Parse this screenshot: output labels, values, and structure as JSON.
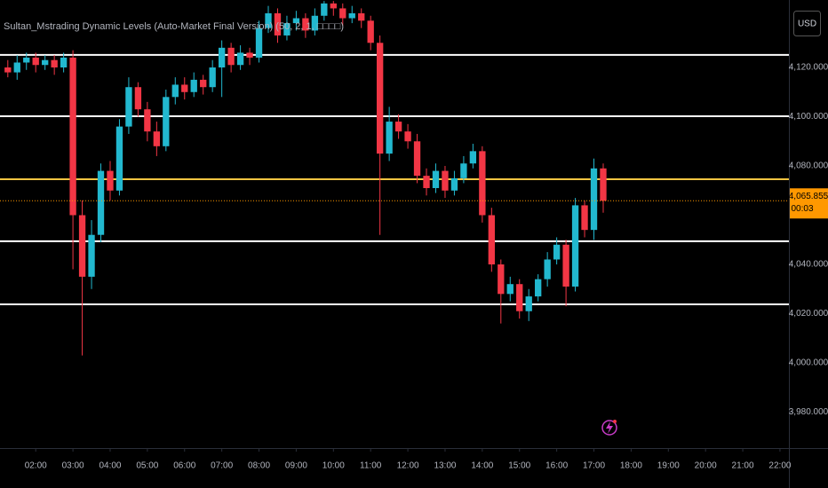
{
  "chart_data": {
    "type": "candlestick",
    "indicator_title": "Sultan_Mstrading Dynamic Levels (Auto-Market Final Version) (50, 2, 1, □□□□)",
    "currency": "USD",
    "up_color": "#22b8cf",
    "down_color": "#f23645",
    "x": [
      1.25,
      1.5,
      1.75,
      2,
      2.25,
      2.5,
      2.75,
      3,
      3.25,
      3.5,
      3.75,
      4,
      4.25,
      4.5,
      4.75,
      5,
      5.25,
      5.5,
      5.75,
      6,
      6.25,
      6.5,
      6.75,
      7,
      7.25,
      7.5,
      7.75,
      8,
      8.25,
      8.5,
      8.75,
      9,
      9.25,
      9.5,
      9.75,
      10,
      10.25,
      10.5,
      10.75,
      11,
      11.25,
      11.5,
      11.75,
      12,
      12.25,
      12.5,
      12.75,
      13,
      13.25,
      13.5,
      13.75,
      14,
      14.25,
      14.5,
      14.75,
      15,
      15.25,
      15.5,
      15.75,
      16,
      16.25,
      16.5,
      16.75,
      17,
      17.25
    ],
    "open": [
      4120,
      4118,
      4122,
      4124,
      4121,
      4123,
      4120,
      4124,
      4060,
      4035,
      4052,
      4078,
      4070,
      4096,
      4112,
      4103,
      4094,
      4088,
      4108,
      4113,
      4110,
      4115,
      4112,
      4120,
      4128,
      4121,
      4126,
      4124,
      4136,
      4142,
      4133,
      4138,
      4140,
      4135,
      4141,
      4146,
      4144,
      4140,
      4142,
      4139,
      4130,
      4085,
      4098,
      4094,
      4090,
      4076,
      4071,
      4078,
      4070,
      4075,
      4081,
      4086,
      4060,
      4040,
      4028,
      4032,
      4021,
      4027,
      4034,
      4042,
      4048,
      4031,
      4064,
      4054,
      4079
    ],
    "high": [
      4123,
      4125,
      4126,
      4126,
      4125,
      4125,
      4126,
      4127,
      4066,
      4058,
      4081,
      4082,
      4099,
      4116,
      4114,
      4106,
      4098,
      4111,
      4116,
      4116,
      4118,
      4117,
      4123,
      4131,
      4130,
      4129,
      4128,
      4139,
      4145,
      4144,
      4141,
      4143,
      4142,
      4144,
      4147,
      4147,
      4146,
      4145,
      4144,
      4141,
      4133,
      4104,
      4101,
      4097,
      4093,
      4079,
      4081,
      4080,
      4078,
      4084,
      4089,
      4088,
      4063,
      4042,
      4035,
      4034,
      4030,
      4036,
      4045,
      4051,
      4050,
      4067,
      4066,
      4083,
      4081
    ],
    "low": [
      4116,
      4115,
      4119,
      4118,
      4119,
      4117,
      4118,
      4038,
      4003,
      4030,
      4049,
      4066,
      4068,
      4093,
      4100,
      4090,
      4084,
      4086,
      4105,
      4107,
      4108,
      4109,
      4110,
      4108,
      4118,
      4119,
      4121,
      4122,
      4134,
      4130,
      4131,
      4135,
      4132,
      4133,
      4139,
      4141,
      4137,
      4138,
      4136,
      4127,
      4052,
      4082,
      4091,
      4087,
      4073,
      4068,
      4069,
      4067,
      4068,
      4073,
      4079,
      4057,
      4037,
      4016,
      4025,
      4018,
      4017,
      4025,
      4031,
      4040,
      4023,
      4029,
      4051,
      4050,
      4061
    ],
    "close": [
      4118,
      4122,
      4124,
      4121,
      4123,
      4120,
      4124,
      4060,
      4035,
      4052,
      4078,
      4070,
      4096,
      4112,
      4103,
      4094,
      4088,
      4108,
      4113,
      4110,
      4115,
      4112,
      4120,
      4128,
      4121,
      4126,
      4124,
      4136,
      4142,
      4133,
      4138,
      4140,
      4135,
      4141,
      4146,
      4144,
      4140,
      4142,
      4139,
      4130,
      4085,
      4098,
      4094,
      4090,
      4076,
      4071,
      4078,
      4070,
      4075,
      4081,
      4086,
      4060,
      4040,
      4028,
      4032,
      4021,
      4027,
      4034,
      4042,
      4048,
      4031,
      4064,
      4054,
      4079,
      4065.855
    ],
    "levels": [
      {
        "value": 4125.1,
        "color": "#ffffff"
      },
      {
        "value": 4100.2,
        "color": "#ffffff"
      },
      {
        "value": 4074.6,
        "color": "#f5c542"
      },
      {
        "value": 4049.4,
        "color": "#ffffff"
      },
      {
        "value": 4023.8,
        "color": "#ffffff"
      }
    ],
    "last_price": {
      "value": 4065.855,
      "label": "4,065.855"
    },
    "countdown": "00:03",
    "price_color": "#ff9800",
    "xlim": [
      1.04,
      22.24
    ],
    "ylim": [
      3965.4,
      4147.4
    ],
    "xticks": [
      {
        "value": 2,
        "label": "02:00"
      },
      {
        "value": 3,
        "label": "03:00"
      },
      {
        "value": 4,
        "label": "04:00"
      },
      {
        "value": 5,
        "label": "05:00"
      },
      {
        "value": 6,
        "label": "06:00"
      },
      {
        "value": 7,
        "label": "07:00"
      },
      {
        "value": 8,
        "label": "08:00"
      },
      {
        "value": 9,
        "label": "09:00"
      },
      {
        "value": 10,
        "label": "10:00"
      },
      {
        "value": 11,
        "label": "11:00"
      },
      {
        "value": 12,
        "label": "12:00"
      },
      {
        "value": 13,
        "label": "13:00"
      },
      {
        "value": 14,
        "label": "14:00"
      },
      {
        "value": 15,
        "label": "15:00"
      },
      {
        "value": 16,
        "label": "16:00"
      },
      {
        "value": 17,
        "label": "17:00"
      },
      {
        "value": 18,
        "label": "18:00"
      },
      {
        "value": 19,
        "label": "19:00"
      },
      {
        "value": 20,
        "label": "20:00"
      },
      {
        "value": 21,
        "label": "21:00"
      },
      {
        "value": 22,
        "label": "22:00"
      }
    ],
    "yticks": [
      {
        "value": 3980,
        "label": "3,980.000"
      },
      {
        "value": 4000,
        "label": "4,000.000"
      },
      {
        "value": 4020,
        "label": "4,020.000"
      },
      {
        "value": 4040,
        "label": "4,040.000"
      },
      {
        "value": 4080,
        "label": "4,080.000"
      },
      {
        "value": 4100,
        "label": "4,100.000"
      },
      {
        "value": 4120,
        "label": "4,120.000"
      }
    ]
  }
}
